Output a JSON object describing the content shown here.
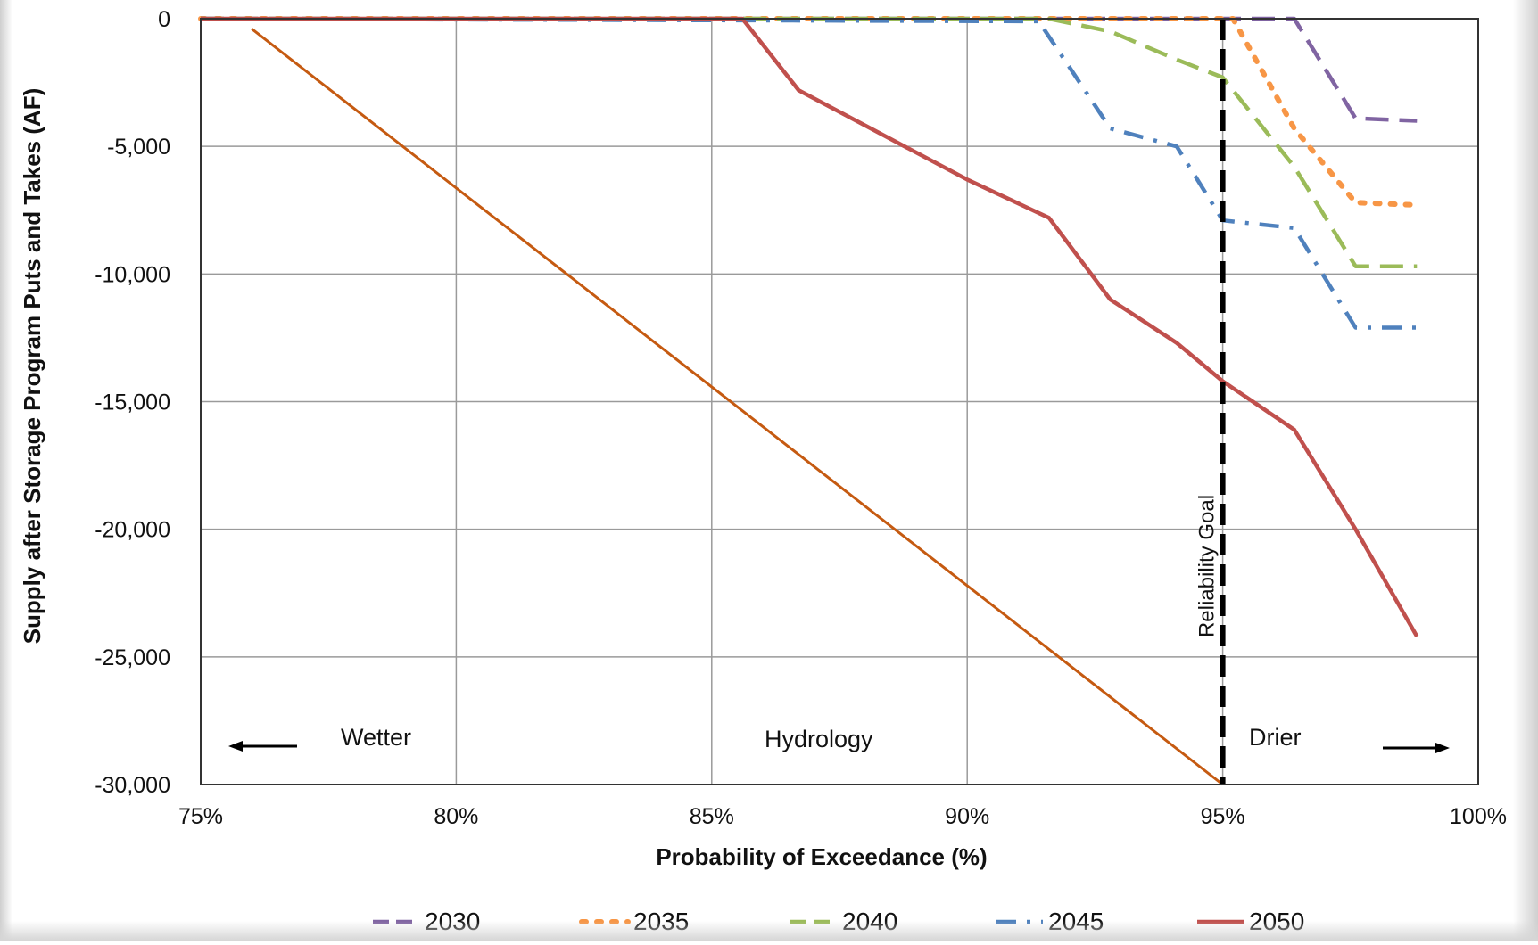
{
  "chart_data": {
    "type": "line",
    "xlabel": "Probability of Exceedance (%)",
    "ylabel": "Supply after Storage Program Puts and Takes  (AF)",
    "xlim": [
      75,
      100
    ],
    "ylim": [
      -30000,
      0
    ],
    "x_ticks": [
      "75%",
      "80%",
      "85%",
      "90%",
      "95%",
      "100%"
    ],
    "x_tick_values": [
      75,
      80,
      85,
      90,
      95,
      100
    ],
    "y_ticks": [
      "0",
      "-5,000",
      "-10,000",
      "-15,000",
      "-20,000",
      "-25,000",
      "-30,000"
    ],
    "y_tick_values": [
      0,
      -5000,
      -10000,
      -15000,
      -20000,
      -25000,
      -30000
    ],
    "grid": true,
    "legend_position": "bottom",
    "series": [
      {
        "name": "2030",
        "color": "#8064a2",
        "dash": "dashed",
        "points": [
          [
            75,
            0
          ],
          [
            96.4,
            0
          ],
          [
            97.6,
            -3900
          ],
          [
            98.8,
            -4000
          ]
        ]
      },
      {
        "name": "2035",
        "color": "#f79646",
        "dash": "dotted",
        "points": [
          [
            75,
            0
          ],
          [
            95.2,
            0
          ],
          [
            96.4,
            -4300
          ],
          [
            97.6,
            -7200
          ],
          [
            98.8,
            -7300
          ]
        ]
      },
      {
        "name": "2040",
        "color": "#9bbb59",
        "dash": "dashed",
        "points": [
          [
            75,
            0
          ],
          [
            91.6,
            0
          ],
          [
            92.8,
            -500
          ],
          [
            94.1,
            -1600
          ],
          [
            95.0,
            -2300
          ],
          [
            96.4,
            -5800
          ],
          [
            97.6,
            -9700
          ],
          [
            98.8,
            -9700
          ]
        ]
      },
      {
        "name": "2045",
        "color": "#4f81bd",
        "dash": "dashdot",
        "points": [
          [
            75,
            0
          ],
          [
            91.4,
            -100
          ],
          [
            92.8,
            -4300
          ],
          [
            94.1,
            -5000
          ],
          [
            95.0,
            -7900
          ],
          [
            96.4,
            -8200
          ],
          [
            97.6,
            -12100
          ],
          [
            98.8,
            -12100
          ]
        ]
      },
      {
        "name": "2050",
        "color": "#c0504d",
        "dash": "solid",
        "points": [
          [
            75,
            0
          ],
          [
            85.6,
            0
          ],
          [
            86.7,
            -2800
          ],
          [
            90,
            -6300
          ],
          [
            91.6,
            -7800
          ],
          [
            92.8,
            -11000
          ],
          [
            94.1,
            -12700
          ],
          [
            95.0,
            -14200
          ],
          [
            96.4,
            -16100
          ],
          [
            97.6,
            -20000
          ],
          [
            98.8,
            -24200
          ]
        ]
      }
    ],
    "annotations": [
      {
        "text": "Reliability Goal",
        "x": 95,
        "style": "vertical black dashed line"
      },
      {
        "text": "Wetter",
        "arrow": "left"
      },
      {
        "text": "Hydrology"
      },
      {
        "text": "Drier",
        "arrow": "right"
      }
    ],
    "overlay_line": {
      "color": "#c55a11",
      "points": [
        [
          76,
          -400
        ],
        [
          95,
          -30000
        ]
      ]
    }
  }
}
